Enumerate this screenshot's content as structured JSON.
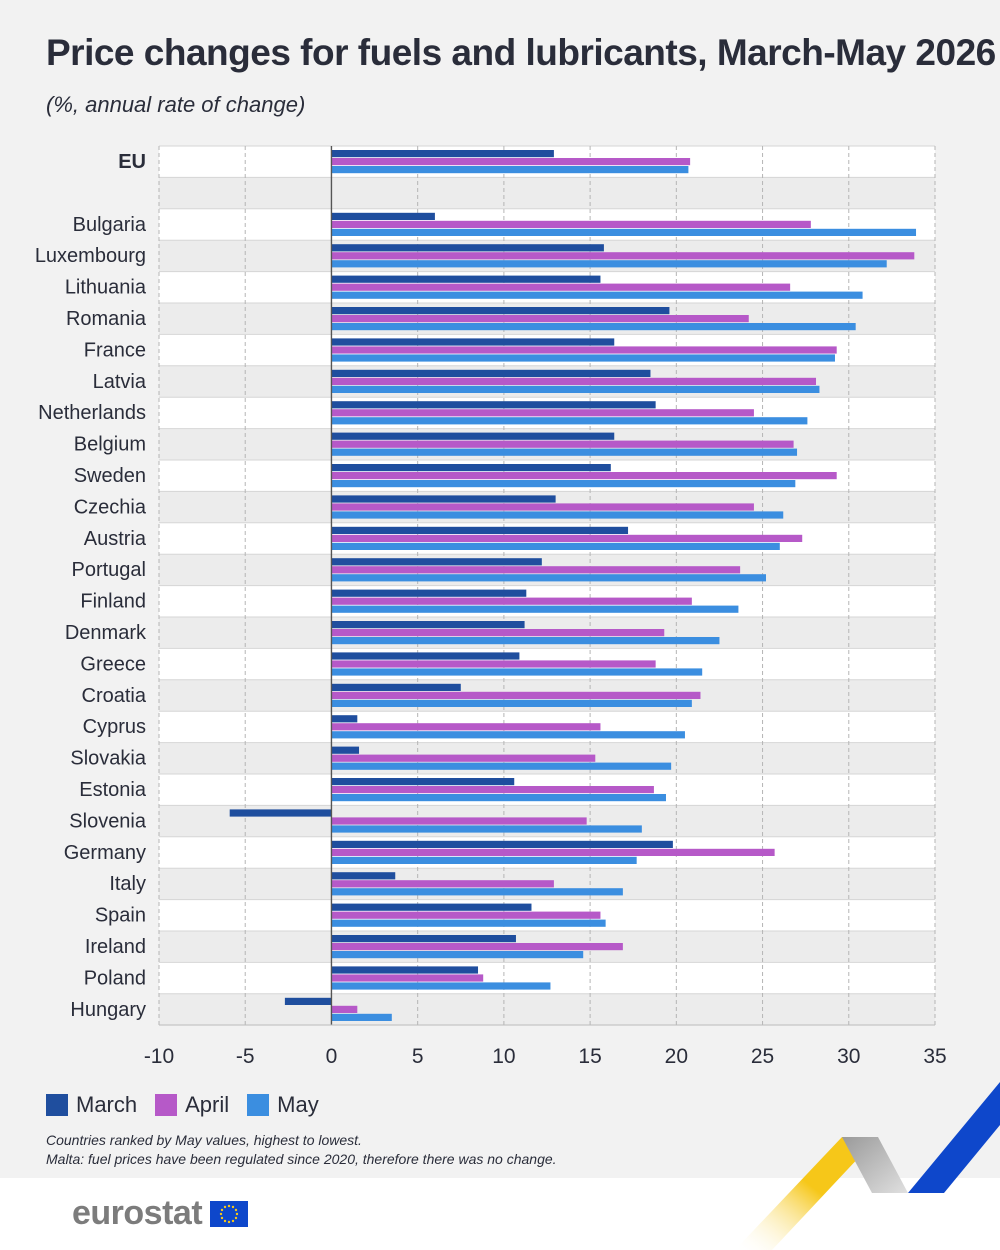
{
  "title": "Price changes for fuels and lubricants, March-May 2026",
  "subtitle": "(%, annual rate of change)",
  "notes": [
    "Countries ranked by May values, highest to lowest.",
    "Malta: fuel prices have been regulated since 2020, therefore there was no change."
  ],
  "logo_text": "eurostat",
  "colors": {
    "march": "#1f4e9e",
    "april": "#b659c8",
    "may": "#3b8ee0",
    "grid": "#b5b5b5",
    "band": "#ececec",
    "text": "#2a2d3a",
    "accent_yellow": "#f6c719",
    "accent_blue": "#0e47cb"
  },
  "chart_data": {
    "type": "bar",
    "orientation": "horizontal",
    "categories": [
      "EU",
      "Bulgaria",
      "Luxembourg",
      "Lithuania",
      "Romania",
      "France",
      "Latvia",
      "Netherlands",
      "Belgium",
      "Sweden",
      "Czechia",
      "Austria",
      "Portugal",
      "Finland",
      "Denmark",
      "Greece",
      "Croatia",
      "Cyprus",
      "Slovakia",
      "Estonia",
      "Slovenia",
      "Germany",
      "Italy",
      "Spain",
      "Ireland",
      "Poland",
      "Hungary"
    ],
    "series": [
      {
        "name": "March",
        "color": "#1f4e9e",
        "values": [
          12.9,
          6.0,
          15.8,
          15.6,
          19.6,
          16.4,
          18.5,
          18.8,
          16.4,
          16.2,
          13.0,
          17.2,
          12.2,
          11.3,
          11.2,
          10.9,
          7.5,
          1.5,
          1.6,
          10.6,
          -5.9,
          19.8,
          3.7,
          11.6,
          10.7,
          8.5,
          -2.7
        ]
      },
      {
        "name": "April",
        "color": "#b659c8",
        "values": [
          20.8,
          27.8,
          33.8,
          26.6,
          24.2,
          29.3,
          28.1,
          24.5,
          26.8,
          29.3,
          24.5,
          27.3,
          23.7,
          20.9,
          19.3,
          18.8,
          21.4,
          15.6,
          15.3,
          18.7,
          14.8,
          25.7,
          12.9,
          15.6,
          16.9,
          8.8,
          1.5
        ]
      },
      {
        "name": "May",
        "color": "#3b8ee0",
        "values": [
          20.7,
          33.9,
          32.2,
          30.8,
          30.4,
          29.2,
          28.3,
          27.6,
          27.0,
          26.9,
          26.2,
          26.0,
          25.2,
          23.6,
          22.5,
          21.5,
          20.9,
          20.5,
          19.7,
          19.4,
          18.0,
          17.7,
          16.9,
          15.9,
          14.6,
          12.7,
          3.5
        ]
      }
    ],
    "xlim": [
      -10,
      35
    ],
    "xticks": [
      -10,
      -5,
      0,
      5,
      10,
      15,
      20,
      25,
      30,
      35
    ],
    "xlabel": "",
    "ylabel": "",
    "grid": true,
    "legend_position": "bottom-left",
    "bold_categories": [
      "EU"
    ]
  }
}
